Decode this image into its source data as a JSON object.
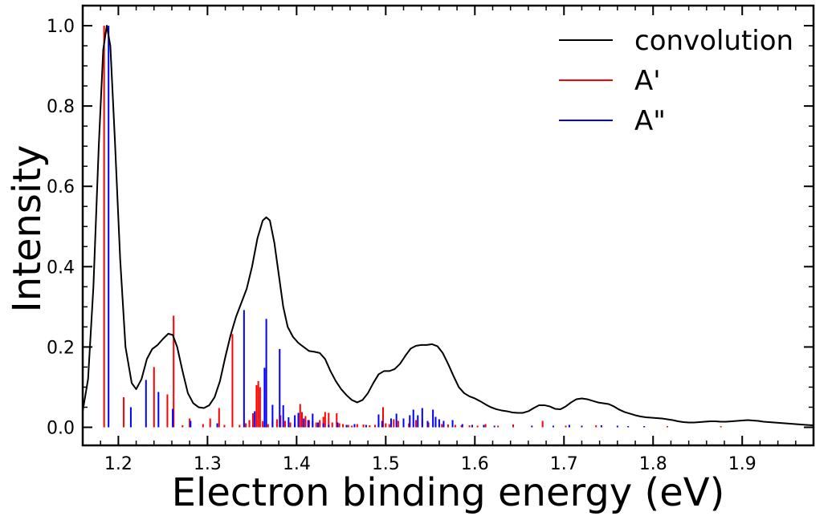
{
  "chart_data": {
    "type": "line",
    "xlabel": "Electron binding energy (eV)",
    "ylabel": "Intensity",
    "xlim": [
      1.16,
      1.98
    ],
    "ylim": [
      -0.045,
      1.05
    ],
    "x_ticks": [
      1.2,
      1.3,
      1.4,
      1.5,
      1.6,
      1.7,
      1.8,
      1.9
    ],
    "x_tick_labels": [
      "1.2",
      "1.3",
      "1.4",
      "1.5",
      "1.6",
      "1.7",
      "1.8",
      "1.9"
    ],
    "y_ticks": [
      0.0,
      0.2,
      0.4,
      0.6,
      0.8,
      1.0
    ],
    "y_tick_labels": [
      "0.0",
      "0.2",
      "0.4",
      "0.6",
      "0.8",
      "1.0"
    ],
    "grid": false,
    "legend_position": "top-right",
    "series": [
      {
        "name": "convolution",
        "kind": "line",
        "color": "#000000",
        "points": [
          [
            1.16,
            0.04
          ],
          [
            1.166,
            0.12
          ],
          [
            1.172,
            0.35
          ],
          [
            1.178,
            0.7
          ],
          [
            1.183,
            0.94
          ],
          [
            1.187,
            1.0
          ],
          [
            1.191,
            0.95
          ],
          [
            1.196,
            0.72
          ],
          [
            1.202,
            0.42
          ],
          [
            1.208,
            0.2
          ],
          [
            1.215,
            0.11
          ],
          [
            1.22,
            0.095
          ],
          [
            1.226,
            0.12
          ],
          [
            1.232,
            0.17
          ],
          [
            1.238,
            0.195
          ],
          [
            1.244,
            0.205
          ],
          [
            1.25,
            0.22
          ],
          [
            1.256,
            0.233
          ],
          [
            1.261,
            0.23
          ],
          [
            1.266,
            0.2
          ],
          [
            1.272,
            0.14
          ],
          [
            1.278,
            0.085
          ],
          [
            1.284,
            0.06
          ],
          [
            1.29,
            0.05
          ],
          [
            1.296,
            0.048
          ],
          [
            1.302,
            0.055
          ],
          [
            1.308,
            0.075
          ],
          [
            1.314,
            0.115
          ],
          [
            1.32,
            0.175
          ],
          [
            1.326,
            0.23
          ],
          [
            1.332,
            0.275
          ],
          [
            1.338,
            0.31
          ],
          [
            1.344,
            0.345
          ],
          [
            1.35,
            0.4
          ],
          [
            1.356,
            0.47
          ],
          [
            1.362,
            0.515
          ],
          [
            1.366,
            0.523
          ],
          [
            1.37,
            0.515
          ],
          [
            1.375,
            0.46
          ],
          [
            1.38,
            0.38
          ],
          [
            1.385,
            0.3
          ],
          [
            1.39,
            0.25
          ],
          [
            1.396,
            0.225
          ],
          [
            1.402,
            0.21
          ],
          [
            1.408,
            0.2
          ],
          [
            1.414,
            0.19
          ],
          [
            1.42,
            0.188
          ],
          [
            1.426,
            0.185
          ],
          [
            1.432,
            0.17
          ],
          [
            1.438,
            0.14
          ],
          [
            1.444,
            0.115
          ],
          [
            1.45,
            0.095
          ],
          [
            1.456,
            0.08
          ],
          [
            1.462,
            0.068
          ],
          [
            1.468,
            0.062
          ],
          [
            1.474,
            0.068
          ],
          [
            1.48,
            0.085
          ],
          [
            1.486,
            0.11
          ],
          [
            1.492,
            0.132
          ],
          [
            1.498,
            0.14
          ],
          [
            1.504,
            0.14
          ],
          [
            1.51,
            0.145
          ],
          [
            1.516,
            0.158
          ],
          [
            1.522,
            0.178
          ],
          [
            1.528,
            0.196
          ],
          [
            1.534,
            0.203
          ],
          [
            1.54,
            0.205
          ],
          [
            1.546,
            0.205
          ],
          [
            1.552,
            0.207
          ],
          [
            1.558,
            0.202
          ],
          [
            1.564,
            0.185
          ],
          [
            1.57,
            0.158
          ],
          [
            1.576,
            0.128
          ],
          [
            1.582,
            0.1
          ],
          [
            1.588,
            0.085
          ],
          [
            1.594,
            0.077
          ],
          [
            1.6,
            0.072
          ],
          [
            1.606,
            0.065
          ],
          [
            1.612,
            0.057
          ],
          [
            1.618,
            0.05
          ],
          [
            1.624,
            0.045
          ],
          [
            1.63,
            0.042
          ],
          [
            1.636,
            0.04
          ],
          [
            1.642,
            0.037
          ],
          [
            1.648,
            0.036
          ],
          [
            1.654,
            0.036
          ],
          [
            1.66,
            0.04
          ],
          [
            1.666,
            0.048
          ],
          [
            1.672,
            0.055
          ],
          [
            1.678,
            0.055
          ],
          [
            1.684,
            0.052
          ],
          [
            1.69,
            0.046
          ],
          [
            1.696,
            0.045
          ],
          [
            1.702,
            0.052
          ],
          [
            1.708,
            0.062
          ],
          [
            1.714,
            0.07
          ],
          [
            1.72,
            0.072
          ],
          [
            1.726,
            0.07
          ],
          [
            1.732,
            0.066
          ],
          [
            1.738,
            0.062
          ],
          [
            1.744,
            0.06
          ],
          [
            1.75,
            0.058
          ],
          [
            1.756,
            0.052
          ],
          [
            1.762,
            0.044
          ],
          [
            1.768,
            0.038
          ],
          [
            1.774,
            0.034
          ],
          [
            1.78,
            0.03
          ],
          [
            1.786,
            0.027
          ],
          [
            1.792,
            0.025
          ],
          [
            1.798,
            0.024
          ],
          [
            1.804,
            0.023
          ],
          [
            1.81,
            0.022
          ],
          [
            1.816,
            0.02
          ],
          [
            1.822,
            0.018
          ],
          [
            1.828,
            0.015
          ],
          [
            1.834,
            0.013
          ],
          [
            1.84,
            0.012
          ],
          [
            1.846,
            0.012
          ],
          [
            1.852,
            0.013
          ],
          [
            1.858,
            0.014
          ],
          [
            1.864,
            0.015
          ],
          [
            1.87,
            0.015
          ],
          [
            1.876,
            0.014
          ],
          [
            1.882,
            0.014
          ],
          [
            1.888,
            0.015
          ],
          [
            1.894,
            0.016
          ],
          [
            1.9,
            0.017
          ],
          [
            1.906,
            0.018
          ],
          [
            1.912,
            0.017
          ],
          [
            1.918,
            0.016
          ],
          [
            1.924,
            0.014
          ],
          [
            1.93,
            0.013
          ],
          [
            1.936,
            0.012
          ],
          [
            1.942,
            0.011
          ],
          [
            1.948,
            0.01
          ],
          [
            1.954,
            0.009
          ],
          [
            1.96,
            0.008
          ],
          [
            1.966,
            0.007
          ],
          [
            1.972,
            0.006
          ],
          [
            1.98,
            0.005
          ]
        ]
      },
      {
        "name": "A'",
        "kind": "stick",
        "color": "#ff0000",
        "points": [
          [
            1.184,
            1.0
          ],
          [
            1.206,
            0.075
          ],
          [
            1.24,
            0.15
          ],
          [
            1.255,
            0.082
          ],
          [
            1.262,
            0.278
          ],
          [
            1.272,
            0.005
          ],
          [
            1.28,
            0.022
          ],
          [
            1.295,
            0.008
          ],
          [
            1.303,
            0.022
          ],
          [
            1.313,
            0.048
          ],
          [
            1.319,
            0.006
          ],
          [
            1.328,
            0.232
          ],
          [
            1.336,
            0.006
          ],
          [
            1.343,
            0.01
          ],
          [
            1.347,
            0.018
          ],
          [
            1.351,
            0.035
          ],
          [
            1.355,
            0.105
          ],
          [
            1.357,
            0.115
          ],
          [
            1.359,
            0.1
          ],
          [
            1.362,
            0.015
          ],
          [
            1.368,
            0.008
          ],
          [
            1.373,
            0.018
          ],
          [
            1.378,
            0.02
          ],
          [
            1.382,
            0.03
          ],
          [
            1.387,
            0.016
          ],
          [
            1.393,
            0.012
          ],
          [
            1.398,
            0.01
          ],
          [
            1.402,
            0.03
          ],
          [
            1.404,
            0.058
          ],
          [
            1.406,
            0.038
          ],
          [
            1.41,
            0.028
          ],
          [
            1.414,
            0.018
          ],
          [
            1.418,
            0.015
          ],
          [
            1.422,
            0.012
          ],
          [
            1.426,
            0.018
          ],
          [
            1.43,
            0.026
          ],
          [
            1.432,
            0.038
          ],
          [
            1.436,
            0.036
          ],
          [
            1.44,
            0.012
          ],
          [
            1.445,
            0.035
          ],
          [
            1.448,
            0.01
          ],
          [
            1.452,
            0.008
          ],
          [
            1.458,
            0.006
          ],
          [
            1.462,
            0.004
          ],
          [
            1.468,
            0.008
          ],
          [
            1.475,
            0.007
          ],
          [
            1.482,
            0.005
          ],
          [
            1.488,
            0.006
          ],
          [
            1.492,
            0.012
          ],
          [
            1.497,
            0.05
          ],
          [
            1.5,
            0.01
          ],
          [
            1.504,
            0.008
          ],
          [
            1.509,
            0.02
          ],
          [
            1.514,
            0.016
          ],
          [
            1.52,
            0.014
          ],
          [
            1.526,
            0.01
          ],
          [
            1.534,
            0.018
          ],
          [
            1.541,
            0.02
          ],
          [
            1.548,
            0.012
          ],
          [
            1.556,
            0.009
          ],
          [
            1.563,
            0.008
          ],
          [
            1.57,
            0.007
          ],
          [
            1.578,
            0.006
          ],
          [
            1.585,
            0.005
          ],
          [
            1.594,
            0.005
          ],
          [
            1.603,
            0.004
          ],
          [
            1.612,
            0.008
          ],
          [
            1.626,
            0.004
          ],
          [
            1.643,
            0.007
          ],
          [
            1.676,
            0.016
          ],
          [
            1.702,
            0.004
          ],
          [
            1.736,
            0.005
          ],
          [
            1.816,
            0.003
          ],
          [
            1.876,
            0.003
          ]
        ]
      },
      {
        "name": "A\"",
        "kind": "stick",
        "color": "#0000ff",
        "points": [
          [
            1.189,
            1.0
          ],
          [
            1.214,
            0.05
          ],
          [
            1.231,
            0.118
          ],
          [
            1.245,
            0.088
          ],
          [
            1.261,
            0.046
          ],
          [
            1.281,
            0.016
          ],
          [
            1.311,
            0.01
          ],
          [
            1.341,
            0.292
          ],
          [
            1.353,
            0.04
          ],
          [
            1.364,
            0.148
          ],
          [
            1.366,
            0.27
          ],
          [
            1.373,
            0.056
          ],
          [
            1.381,
            0.195
          ],
          [
            1.385,
            0.055
          ],
          [
            1.391,
            0.025
          ],
          [
            1.398,
            0.03
          ],
          [
            1.402,
            0.036
          ],
          [
            1.408,
            0.022
          ],
          [
            1.413,
            0.018
          ],
          [
            1.418,
            0.034
          ],
          [
            1.424,
            0.012
          ],
          [
            1.43,
            0.01
          ],
          [
            1.436,
            0.006
          ],
          [
            1.446,
            0.012
          ],
          [
            1.456,
            0.006
          ],
          [
            1.465,
            0.008
          ],
          [
            1.478,
            0.006
          ],
          [
            1.492,
            0.032
          ],
          [
            1.496,
            0.016
          ],
          [
            1.506,
            0.022
          ],
          [
            1.512,
            0.034
          ],
          [
            1.52,
            0.022
          ],
          [
            1.527,
            0.03
          ],
          [
            1.531,
            0.044
          ],
          [
            1.536,
            0.03
          ],
          [
            1.541,
            0.048
          ],
          [
            1.547,
            0.016
          ],
          [
            1.553,
            0.044
          ],
          [
            1.556,
            0.026
          ],
          [
            1.56,
            0.02
          ],
          [
            1.565,
            0.016
          ],
          [
            1.575,
            0.018
          ],
          [
            1.586,
            0.008
          ],
          [
            1.597,
            0.006
          ],
          [
            1.61,
            0.006
          ],
          [
            1.622,
            0.004
          ],
          [
            1.664,
            0.004
          ],
          [
            1.688,
            0.004
          ],
          [
            1.706,
            0.006
          ],
          [
            1.72,
            0.004
          ],
          [
            1.742,
            0.005
          ],
          [
            1.76,
            0.004
          ],
          [
            1.772,
            0.003
          ],
          [
            1.79,
            0.003
          ]
        ]
      }
    ]
  }
}
